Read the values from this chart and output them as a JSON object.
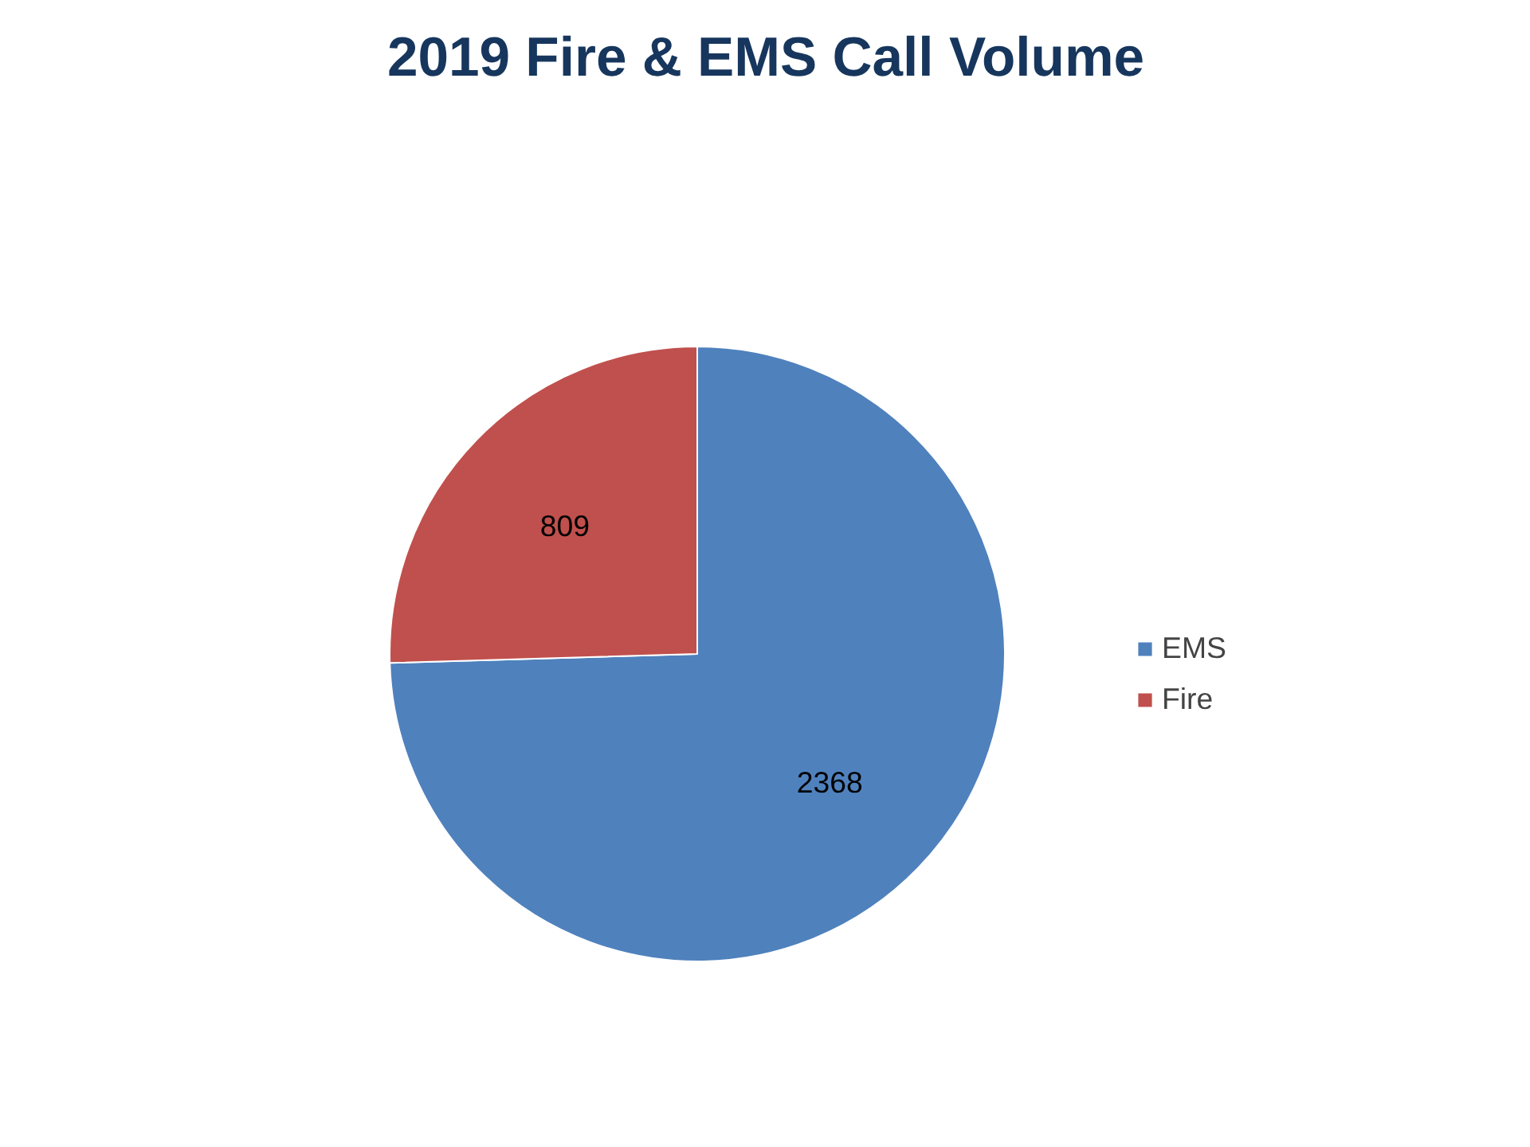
{
  "chart_data": {
    "type": "pie",
    "title": "2019 Fire & EMS Call Volume",
    "categories": [
      "EMS",
      "Fire"
    ],
    "values": [
      2368,
      809
    ],
    "colors": [
      "#4f81bd",
      "#c0504d"
    ],
    "data_labels": true,
    "legend": "right"
  }
}
